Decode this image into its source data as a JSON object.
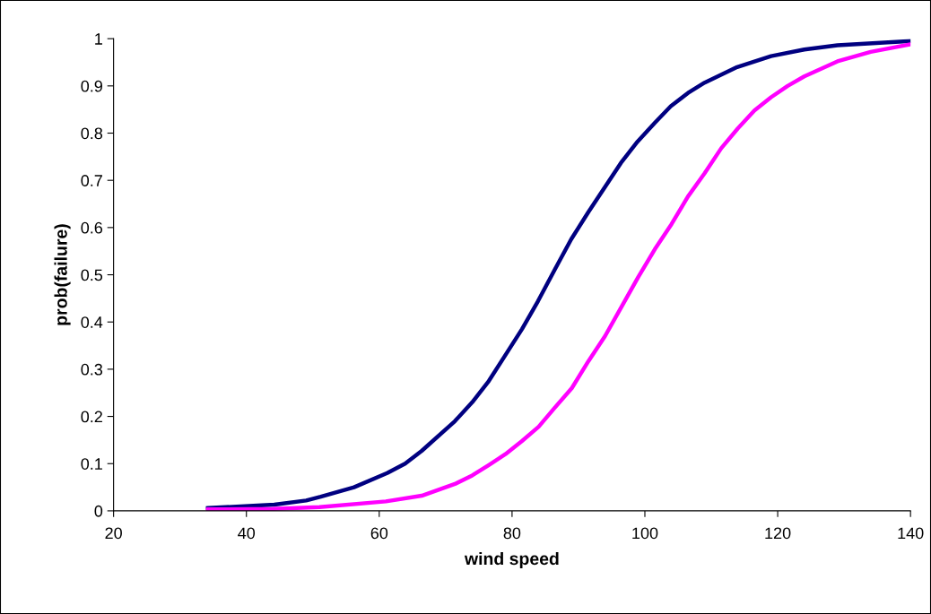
{
  "chart_data": {
    "type": "line",
    "xlabel": "wind speed",
    "ylabel": "prob(failure)",
    "xlim": [
      20,
      140
    ],
    "xticks": [
      20,
      40,
      60,
      80,
      100,
      120,
      140
    ],
    "ylim": [
      0,
      1
    ],
    "yticks": [
      0,
      0.1,
      0.2,
      0.3,
      0.4,
      0.5,
      0.6,
      0.7,
      0.8,
      0.9,
      1
    ],
    "grid": false,
    "marker": "none",
    "line_style": "solid",
    "series": [
      {
        "color": "#000080",
        "x": [
          34.2,
          44.2,
          49,
          51.2,
          56.2,
          61.2,
          63.9,
          66.4,
          71.4,
          74,
          76.5,
          79,
          81.5,
          83.9,
          86.4,
          88.9,
          91.5,
          96.4,
          98.9,
          101.5,
          103.9,
          106.5,
          109,
          113.9,
          119,
          124,
          129,
          140
        ],
        "values": [
          0.006,
          0.013,
          0.022,
          0.03,
          0.05,
          0.08,
          0.1,
          0.127,
          0.19,
          0.23,
          0.275,
          0.33,
          0.385,
          0.444,
          0.51,
          0.575,
          0.633,
          0.737,
          0.782,
          0.822,
          0.857,
          0.885,
          0.907,
          0.94,
          0.963,
          0.977,
          0.986,
          0.995
        ]
      },
      {
        "color": "#ff00ff",
        "x": [
          34.2,
          44,
          51,
          61,
          66.4,
          71.4,
          74,
          76.5,
          79,
          81.5,
          84,
          86.4,
          89,
          91.5,
          94,
          96.4,
          99,
          101.5,
          104,
          106.5,
          109,
          111.5,
          114,
          116.5,
          119,
          121.5,
          124,
          129,
          134,
          140
        ],
        "values": [
          0.003,
          0.004,
          0.008,
          0.02,
          0.032,
          0.057,
          0.075,
          0.097,
          0.12,
          0.148,
          0.178,
          0.218,
          0.26,
          0.317,
          0.37,
          0.43,
          0.495,
          0.554,
          0.607,
          0.666,
          0.715,
          0.768,
          0.81,
          0.848,
          0.876,
          0.9,
          0.92,
          0.952,
          0.972,
          0.988
        ]
      }
    ]
  }
}
